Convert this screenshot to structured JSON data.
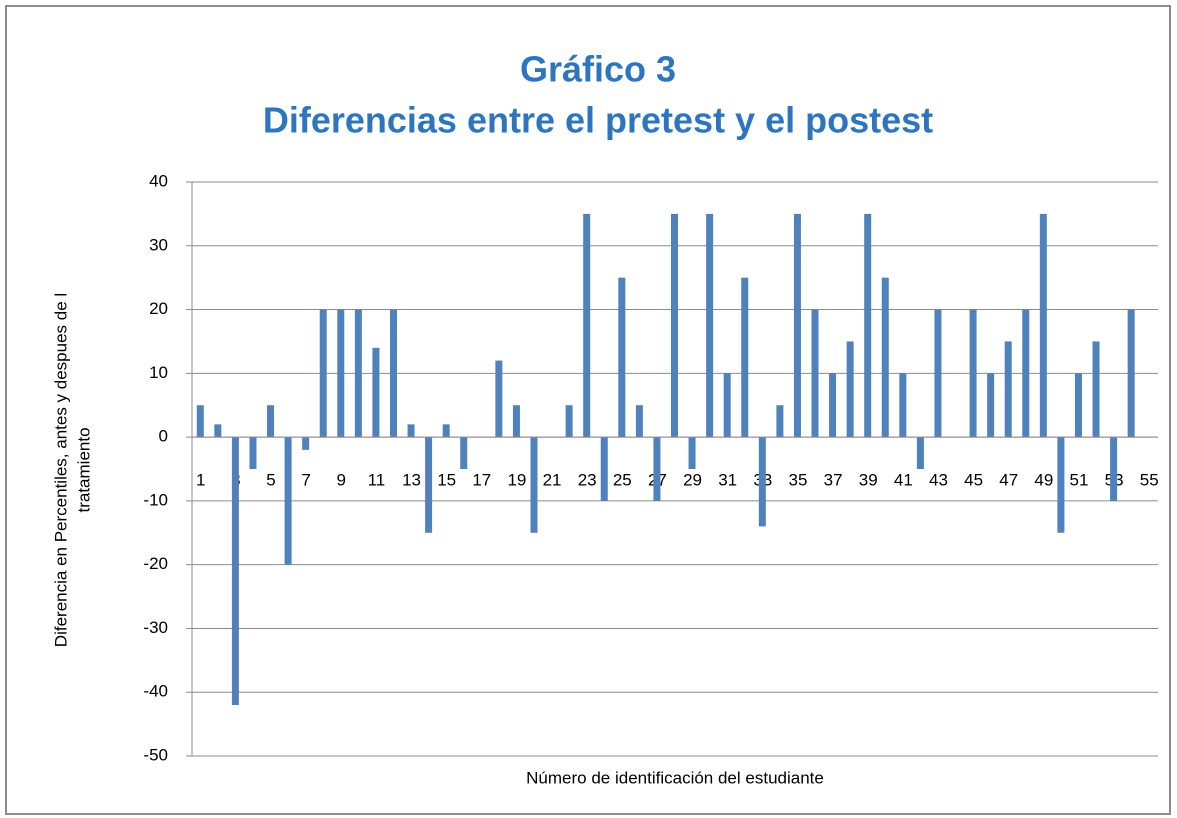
{
  "chart_data": {
    "type": "bar",
    "title": [
      "Gráfico 3",
      "Diferencias entre el pretest y el postest"
    ],
    "x_label": "Número de identificación del estudiante",
    "y_label": [
      "Diferencia en Percentiles, antes y despues de l",
      "tratamiento"
    ],
    "categories": [
      1,
      null,
      3,
      null,
      5,
      null,
      7,
      null,
      9,
      null,
      11,
      null,
      13,
      null,
      15,
      null,
      17,
      null,
      19,
      null,
      21,
      null,
      23,
      null,
      25,
      null,
      27,
      null,
      29,
      null,
      31,
      null,
      33,
      null,
      35,
      null,
      37,
      null,
      39,
      null,
      41,
      null,
      43,
      null,
      45,
      null,
      47,
      null,
      49,
      null,
      51,
      null,
      53,
      null,
      55
    ],
    "values": [
      5,
      2,
      -42,
      -5,
      5,
      -20,
      -2,
      20,
      20,
      20,
      14,
      20,
      2,
      -15,
      2,
      -5,
      0,
      12,
      5,
      -15,
      0,
      5,
      35,
      -10,
      25,
      5,
      -10,
      35,
      -5,
      35,
      10,
      25,
      -14,
      5,
      35,
      20,
      10,
      15,
      35,
      25,
      10,
      -5,
      20,
      0,
      20,
      10,
      15,
      20,
      35,
      -15,
      10,
      15,
      -10,
      20,
      0
    ],
    "color": "#4f81bd",
    "ylim": [
      -50,
      40
    ],
    "yticks": [
      -50,
      -40,
      -30,
      -20,
      -10,
      0,
      10,
      20,
      30,
      40
    ],
    "grid": true
  }
}
